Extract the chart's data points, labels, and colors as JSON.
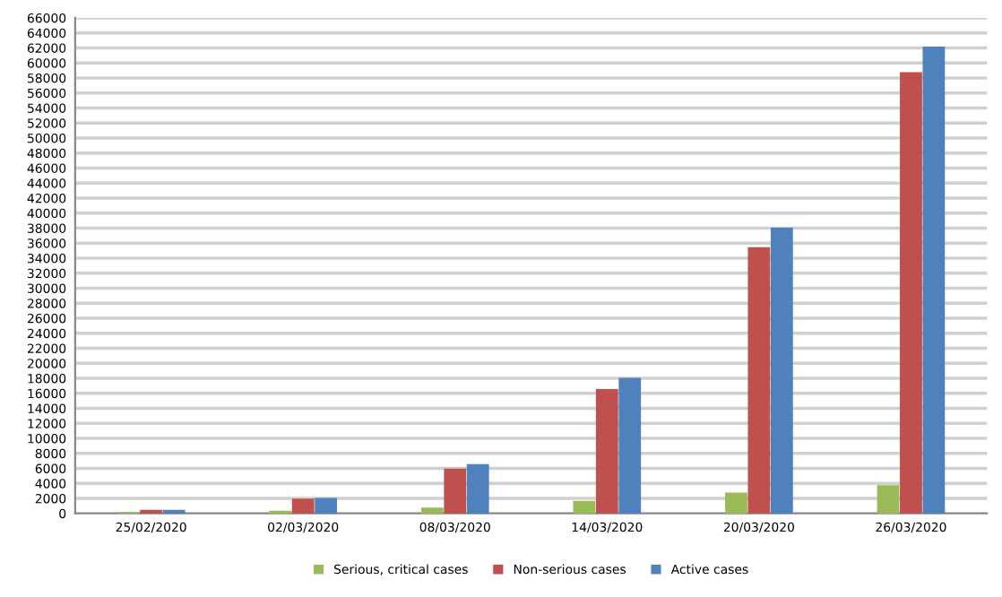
{
  "chart_data": {
    "type": "bar",
    "categories": [
      "25/02/2020",
      "02/03/2020",
      "08/03/2020",
      "14/03/2020",
      "20/03/2020",
      "26/03/2020"
    ],
    "series": [
      {
        "name": "Serious, critical cases",
        "color": "#9bbb59",
        "values": [
          null,
          200,
          600,
          1500,
          2600,
          3600
        ]
      },
      {
        "name": "Non-serious cases",
        "color": "#c0504d",
        "values": [
          300,
          1800,
          5800,
          16400,
          35300,
          58600
        ]
      },
      {
        "name": "Active cases",
        "color": "#4f81bd",
        "values": [
          300,
          1900,
          6400,
          17900,
          37900,
          62000
        ]
      }
    ],
    "ylim": [
      0,
      66000
    ],
    "yticks": [
      0,
      2000,
      4000,
      6000,
      8000,
      10000,
      12000,
      14000,
      16000,
      18000,
      20000,
      22000,
      24000,
      26000,
      28000,
      30000,
      32000,
      34000,
      36000,
      38000,
      40000,
      42000,
      44000,
      46000,
      48000,
      50000,
      52000,
      54000,
      56000,
      58000,
      60000,
      62000,
      64000,
      66000
    ],
    "grid": "y",
    "legend": "bottom"
  }
}
